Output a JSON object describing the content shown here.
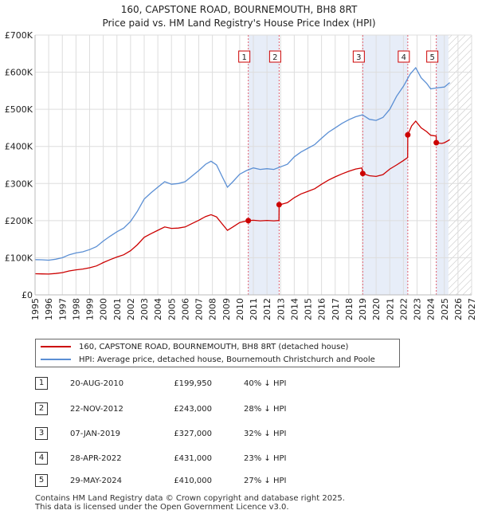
{
  "title_line1": "160, CAPSTONE ROAD, BOURNEMOUTH, BH8 8RT",
  "title_line2": "Price paid vs. HM Land Registry's House Price Index (HPI)",
  "legend": {
    "property": "160, CAPSTONE ROAD, BOURNEMOUTH, BH8 8RT (detached house)",
    "hpi": "HPI: Average price, detached house, Bournemouth Christchurch and Poole"
  },
  "colors": {
    "property": "#cc0000",
    "hpi": "#5b8fd4",
    "shade": "#dde6f5",
    "marker_line": "#e06070"
  },
  "sales": [
    {
      "num": "1",
      "date": "20-AUG-2010",
      "price": "£199,950",
      "hpi": "40% ↓ HPI"
    },
    {
      "num": "2",
      "date": "22-NOV-2012",
      "price": "£243,000",
      "hpi": "28% ↓ HPI"
    },
    {
      "num": "3",
      "date": "07-JAN-2019",
      "price": "£327,000",
      "hpi": "32% ↓ HPI"
    },
    {
      "num": "4",
      "date": "28-APR-2022",
      "price": "£431,000",
      "hpi": "23% ↓ HPI"
    },
    {
      "num": "5",
      "date": "29-MAY-2024",
      "price": "£410,000",
      "hpi": "27% ↓ HPI"
    }
  ],
  "footer": {
    "line1": "Contains HM Land Registry data © Crown copyright and database right 2025.",
    "line2": "This data is licensed under the Open Government Licence v3.0."
  },
  "chart_data": {
    "type": "line",
    "xlim": [
      1995,
      2027
    ],
    "ylim": [
      0,
      700000
    ],
    "y_ticks": [
      0,
      100000,
      200000,
      300000,
      400000,
      500000,
      600000,
      700000
    ],
    "y_tick_labels": [
      "£0",
      "£100K",
      "£200K",
      "£300K",
      "£400K",
      "£500K",
      "£600K",
      "£700K"
    ],
    "x_ticks": [
      1995,
      1996,
      1997,
      1998,
      1999,
      2000,
      2001,
      2002,
      2003,
      2004,
      2005,
      2006,
      2007,
      2008,
      2009,
      2010,
      2011,
      2012,
      2013,
      2014,
      2015,
      2016,
      2017,
      2018,
      2019,
      2020,
      2021,
      2022,
      2023,
      2024,
      2025,
      2026,
      2027
    ],
    "forecast_from": 2025.3,
    "shaded_ranges": [
      [
        2010.63,
        2012.89
      ],
      [
        2019.02,
        2022.32
      ],
      [
        2024.41,
        2025.3
      ]
    ],
    "sale_markers": [
      {
        "label": "1",
        "x": 2010.63,
        "y": 199950
      },
      {
        "label": "2",
        "x": 2012.89,
        "y": 243000
      },
      {
        "label": "3",
        "x": 2019.02,
        "y": 327000
      },
      {
        "label": "4",
        "x": 2022.32,
        "y": 431000
      },
      {
        "label": "5",
        "x": 2024.41,
        "y": 410000
      }
    ],
    "series": [
      {
        "name": "HPI: Average price, detached house, Bournemouth Christchurch and Poole",
        "points": [
          [
            1995.0,
            95000
          ],
          [
            1995.5,
            94500
          ],
          [
            1996.0,
            93500
          ],
          [
            1996.5,
            96000
          ],
          [
            1997.0,
            100000
          ],
          [
            1997.5,
            108000
          ],
          [
            1998.0,
            113000
          ],
          [
            1998.5,
            116000
          ],
          [
            1999.0,
            122000
          ],
          [
            1999.5,
            130000
          ],
          [
            2000.0,
            145000
          ],
          [
            2000.5,
            158000
          ],
          [
            2001.0,
            170000
          ],
          [
            2001.5,
            180000
          ],
          [
            2002.0,
            198000
          ],
          [
            2002.5,
            225000
          ],
          [
            2003.0,
            258000
          ],
          [
            2003.5,
            275000
          ],
          [
            2004.0,
            290000
          ],
          [
            2004.5,
            305000
          ],
          [
            2005.0,
            298000
          ],
          [
            2005.5,
            300000
          ],
          [
            2006.0,
            305000
          ],
          [
            2006.5,
            320000
          ],
          [
            2007.0,
            335000
          ],
          [
            2007.5,
            352000
          ],
          [
            2007.9,
            360000
          ],
          [
            2008.3,
            350000
          ],
          [
            2008.7,
            320000
          ],
          [
            2009.1,
            290000
          ],
          [
            2009.5,
            305000
          ],
          [
            2010.0,
            325000
          ],
          [
            2010.5,
            335000
          ],
          [
            2011.0,
            342000
          ],
          [
            2011.5,
            338000
          ],
          [
            2012.0,
            340000
          ],
          [
            2012.5,
            338000
          ],
          [
            2013.0,
            345000
          ],
          [
            2013.5,
            352000
          ],
          [
            2014.0,
            372000
          ],
          [
            2014.5,
            385000
          ],
          [
            2015.0,
            395000
          ],
          [
            2015.5,
            405000
          ],
          [
            2016.0,
            422000
          ],
          [
            2016.5,
            438000
          ],
          [
            2017.0,
            450000
          ],
          [
            2017.5,
            462000
          ],
          [
            2018.0,
            472000
          ],
          [
            2018.5,
            480000
          ],
          [
            2019.0,
            485000
          ],
          [
            2019.5,
            473000
          ],
          [
            2020.0,
            470000
          ],
          [
            2020.5,
            478000
          ],
          [
            2021.0,
            500000
          ],
          [
            2021.5,
            535000
          ],
          [
            2022.0,
            562000
          ],
          [
            2022.5,
            595000
          ],
          [
            2022.9,
            612000
          ],
          [
            2023.3,
            585000
          ],
          [
            2023.7,
            570000
          ],
          [
            2024.0,
            555000
          ],
          [
            2024.5,
            558000
          ],
          [
            2025.0,
            560000
          ],
          [
            2025.4,
            572000
          ]
        ]
      },
      {
        "name": "160, CAPSTONE ROAD, BOURNEMOUTH, BH8 8RT (detached house)",
        "points": [
          [
            1995.0,
            57000
          ],
          [
            1995.5,
            56500
          ],
          [
            1996.0,
            56000
          ],
          [
            1996.5,
            57500
          ],
          [
            1997.0,
            60000
          ],
          [
            1997.5,
            64500
          ],
          [
            1998.0,
            67500
          ],
          [
            1998.5,
            69500
          ],
          [
            1999.0,
            73000
          ],
          [
            1999.5,
            78000
          ],
          [
            2000.0,
            87000
          ],
          [
            2000.5,
            95000
          ],
          [
            2001.0,
            102000
          ],
          [
            2001.5,
            108000
          ],
          [
            2002.0,
            119000
          ],
          [
            2002.5,
            135000
          ],
          [
            2003.0,
            155000
          ],
          [
            2003.5,
            165000
          ],
          [
            2004.0,
            174000
          ],
          [
            2004.5,
            183000
          ],
          [
            2005.0,
            179000
          ],
          [
            2005.5,
            180000
          ],
          [
            2006.0,
            183000
          ],
          [
            2006.5,
            192000
          ],
          [
            2007.0,
            201000
          ],
          [
            2007.5,
            211000
          ],
          [
            2007.9,
            216000
          ],
          [
            2008.3,
            210000
          ],
          [
            2008.7,
            192000
          ],
          [
            2009.1,
            174000
          ],
          [
            2009.5,
            183000
          ],
          [
            2010.0,
            195000
          ],
          [
            2010.5,
            199000
          ],
          [
            2010.63,
            199950
          ],
          [
            2011.0,
            201000
          ],
          [
            2011.5,
            199500
          ],
          [
            2012.0,
            200500
          ],
          [
            2012.5,
            199500
          ],
          [
            2012.88,
            200500
          ],
          [
            2012.89,
            243000
          ],
          [
            2013.0,
            243500
          ],
          [
            2013.5,
            248500
          ],
          [
            2014.0,
            262000
          ],
          [
            2014.5,
            272000
          ],
          [
            2015.0,
            279000
          ],
          [
            2015.5,
            286000
          ],
          [
            2016.0,
            298000
          ],
          [
            2016.5,
            309000
          ],
          [
            2017.0,
            318000
          ],
          [
            2017.5,
            326000
          ],
          [
            2018.0,
            333000
          ],
          [
            2018.5,
            339000
          ],
          [
            2018.95,
            342000
          ],
          [
            2019.02,
            327000
          ],
          [
            2019.5,
            321000
          ],
          [
            2020.0,
            319000
          ],
          [
            2020.5,
            324000
          ],
          [
            2021.0,
            339000
          ],
          [
            2021.5,
            350000
          ],
          [
            2022.0,
            362000
          ],
          [
            2022.31,
            370000
          ],
          [
            2022.32,
            431000
          ],
          [
            2022.6,
            455000
          ],
          [
            2022.9,
            468000
          ],
          [
            2023.3,
            450000
          ],
          [
            2023.7,
            440000
          ],
          [
            2024.0,
            430000
          ],
          [
            2024.4,
            428000
          ],
          [
            2024.41,
            410000
          ],
          [
            2024.8,
            408000
          ],
          [
            2025.0,
            410000
          ],
          [
            2025.4,
            418000
          ]
        ]
      }
    ]
  }
}
